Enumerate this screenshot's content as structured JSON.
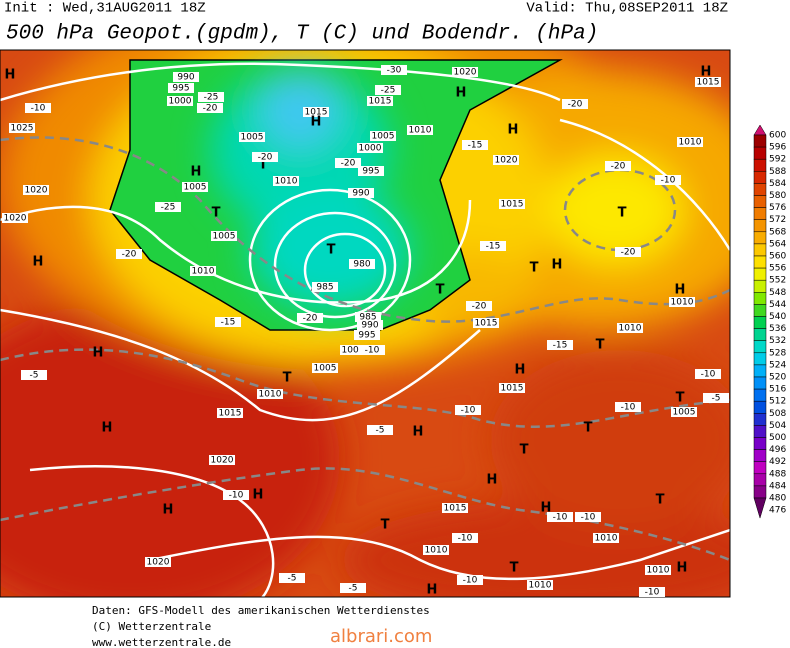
{
  "header": {
    "init": "Init : Wed,31AUG2011 18Z",
    "valid": "Valid: Thu,08SEP2011 18Z",
    "title": "500 hPa Geopot.(gpdm), T (C) und Bodendr. (hPa)"
  },
  "colorbar": {
    "labels": [
      600,
      596,
      592,
      588,
      584,
      580,
      576,
      572,
      568,
      564,
      560,
      556,
      552,
      548,
      544,
      540,
      536,
      532,
      528,
      524,
      520,
      516,
      512,
      508,
      504,
      500,
      496,
      492,
      488,
      484,
      480,
      476
    ],
    "colors": [
      "#d01070",
      "#9c0000",
      "#b80000",
      "#cc1000",
      "#d82800",
      "#e04400",
      "#e86000",
      "#f07c00",
      "#f49400",
      "#f8ac00",
      "#fcc800",
      "#fee000",
      "#f0f000",
      "#c8f000",
      "#80e800",
      "#40d820",
      "#00d050",
      "#00d490",
      "#00d8c8",
      "#00cce8",
      "#00b0f8",
      "#0090f8",
      "#0070f0",
      "#0050e0",
      "#2030d0",
      "#5010c8",
      "#7800c8",
      "#a000c8",
      "#c000c0",
      "#a800a8",
      "#880088",
      "#600060"
    ]
  },
  "map_labels": [
    "H",
    "-10",
    "1025",
    "1020",
    "1020",
    "H",
    "-5",
    "H",
    "H",
    "1020",
    "-10",
    "H",
    "H",
    "1020",
    "-5",
    "-5",
    "-5",
    "H",
    "T",
    "1015",
    "-10",
    "1010",
    "H",
    "-10",
    "T",
    "1010",
    "1010",
    "-10",
    "H",
    "1010",
    "-10",
    "-10",
    "H",
    "T",
    "T",
    "H",
    "-10",
    "1015",
    "H",
    "T",
    "-10",
    "T",
    "1005",
    "-5",
    "-10",
    "-15",
    "T",
    "1010",
    "H",
    "1010",
    "T",
    "-20",
    "-20",
    "-10",
    "1010",
    "H",
    "1015",
    "-20",
    "-15",
    "H",
    "1020",
    "-30",
    "-25",
    "1015",
    "H",
    "1020",
    "1015",
    "-15",
    "T",
    "H",
    "1015",
    "-20",
    "T",
    "1015",
    "H",
    "1005",
    "1010",
    "1005",
    "1000",
    "T",
    "-20",
    "1010",
    "995",
    "-20",
    "990",
    "990",
    "995",
    "1000",
    "-25",
    "-20",
    "H",
    "1005",
    "T",
    "-25",
    "1005",
    "-20",
    "T",
    "985",
    "980",
    "1010",
    "-15",
    "-20",
    "985",
    "990",
    "995",
    "1000",
    "1005",
    "T",
    "1010",
    "1015",
    "-10"
  ],
  "footer": {
    "line1": "Daten: GFS-Modell des amerikanischen Wetterdienstes",
    "line2": "(C) Wetterzentrale",
    "line3": "www.wetterzentrale.de"
  },
  "watermark": "albrari.com"
}
